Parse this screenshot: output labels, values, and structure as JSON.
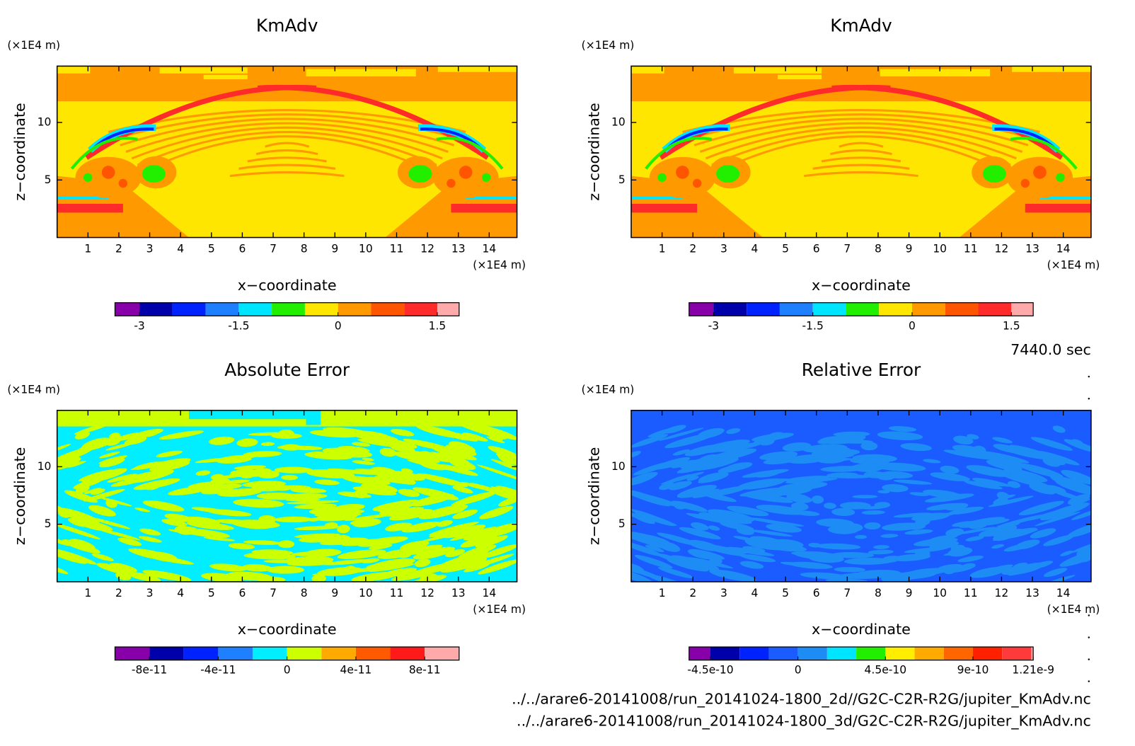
{
  "chart_data": [
    {
      "type": "contour",
      "title": "KmAdv",
      "xlabel": "x−coordinate",
      "ylabel": "z−coordinate",
      "x_unit": "(×1E4 m)",
      "y_unit": "(×1E4 m)",
      "xlim": [
        0,
        14.9
      ],
      "xticks": [
        1,
        2,
        3,
        4,
        5,
        6,
        7,
        8,
        9,
        10,
        11,
        12,
        13,
        14
      ],
      "ylim": [
        0,
        14.9
      ],
      "yticks": [
        5,
        10
      ],
      "colorbar": {
        "colors": [
          "#8800aa",
          "#0000aa",
          "#0022ff",
          "#1e80ff",
          "#00e5ff",
          "#22ee00",
          "#ffe600",
          "#ff9900",
          "#ff5500",
          "#ff2a2a",
          "#ffaaaa"
        ],
        "bounds": [
          -3.37,
          -3,
          -2.5,
          -2,
          -1.5,
          -1,
          -0.5,
          0,
          0.5,
          1,
          1.5,
          1.83
        ],
        "ticks": [
          -3,
          -1.5,
          0,
          1.5
        ]
      }
    },
    {
      "type": "contour",
      "title": "KmAdv",
      "xlabel": "x−coordinate",
      "ylabel": "z−coordinate",
      "x_unit": "(×1E4 m)",
      "y_unit": "(×1E4 m)",
      "xlim": [
        0,
        14.9
      ],
      "xticks": [
        1,
        2,
        3,
        4,
        5,
        6,
        7,
        8,
        9,
        10,
        11,
        12,
        13,
        14
      ],
      "ylim": [
        0,
        14.9
      ],
      "yticks": [
        5,
        10
      ],
      "colorbar": {
        "colors": [
          "#8800aa",
          "#0000aa",
          "#0022ff",
          "#1e80ff",
          "#00e5ff",
          "#22ee00",
          "#ffe600",
          "#ff9900",
          "#ff5500",
          "#ff2a2a",
          "#ffaaaa"
        ],
        "bounds": [
          -3.37,
          -3,
          -2.5,
          -2,
          -1.5,
          -1,
          -0.5,
          0,
          0.5,
          1,
          1.5,
          1.83
        ],
        "ticks": [
          -3,
          -1.5,
          0,
          1.5
        ]
      }
    },
    {
      "type": "contour",
      "title": "Absolute Error",
      "xlabel": "x−coordinate",
      "ylabel": "z−coordinate",
      "x_unit": "(×1E4 m)",
      "y_unit": "(×1E4 m)",
      "xlim": [
        0,
        14.9
      ],
      "xticks": [
        1,
        2,
        3,
        4,
        5,
        6,
        7,
        8,
        9,
        10,
        11,
        12,
        13,
        14
      ],
      "ylim": [
        0,
        14.9
      ],
      "yticks": [
        5,
        10
      ],
      "colorbar": {
        "colors": [
          "#8800aa",
          "#0000aa",
          "#0022ff",
          "#1e80ff",
          "#00eeff",
          "#ccff00",
          "#ffaa00",
          "#ff5a00",
          "#ff1a1a",
          "#ffaaaa"
        ],
        "bounds": [
          -1e-10,
          -8e-11,
          -6e-11,
          -4e-11,
          -2e-11,
          0,
          2e-11,
          4e-11,
          6e-11,
          8e-11,
          1e-10
        ],
        "ticks": [
          -8e-11,
          -4e-11,
          0,
          4e-11,
          8e-11
        ]
      }
    },
    {
      "type": "contour",
      "title": "Relative Error",
      "xlabel": "x−coordinate",
      "ylabel": "z−coordinate",
      "x_unit": "(×1E4 m)",
      "y_unit": "(×1E4 m)",
      "xlim": [
        0,
        14.9
      ],
      "xticks": [
        1,
        2,
        3,
        4,
        5,
        6,
        7,
        8,
        9,
        10,
        11,
        12,
        13,
        14
      ],
      "ylim": [
        0,
        14.9
      ],
      "yticks": [
        5,
        10
      ],
      "colorbar": {
        "colors": [
          "#8800aa",
          "#0000aa",
          "#0022ff",
          "#1a5cff",
          "#1e8cf5",
          "#00e5ff",
          "#22ee00",
          "#ffee00",
          "#ffaa00",
          "#ff6600",
          "#ff2000",
          "#ff3a3a",
          "#ffaaaa"
        ],
        "bounds": [
          -5.6e-10,
          -4.5e-10,
          -3e-10,
          -1.5e-10,
          0,
          1.5e-10,
          3e-10,
          4.5e-10,
          6e-10,
          7.5e-10,
          9e-10,
          1.05e-09,
          1.2e-09,
          1.21e-09
        ],
        "ticks": [
          -4.5e-10,
          0,
          4.5e-10,
          9e-10,
          1.21e-09
        ]
      }
    }
  ],
  "time_label": "7440.0 sec",
  "files": [
    "../../arare6-20141008/run_20141024-1800_2d//G2C-C2R-R2G/jupiter_KmAdv.nc",
    "../../arare6-20141008/run_20141024-1800_3d/G2C-C2R-R2G/jupiter_KmAdv.nc"
  ]
}
